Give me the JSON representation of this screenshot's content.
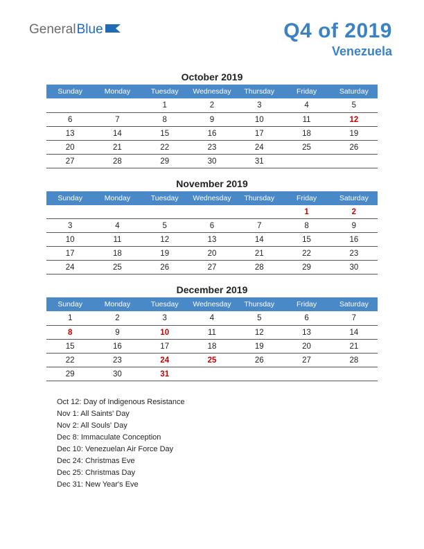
{
  "logo": {
    "part1": "General",
    "part2": "Blue"
  },
  "header": {
    "title": "Q4 of 2019",
    "subtitle": "Venezuela",
    "title_color": "#3b82c4",
    "subtitle_color": "#3b82c4"
  },
  "weekdays": [
    "Sunday",
    "Monday",
    "Tuesday",
    "Wednesday",
    "Thursday",
    "Friday",
    "Saturday"
  ],
  "header_row_bg": "#4a89c8",
  "months": [
    {
      "title": "October 2019",
      "weeks": [
        [
          {
            "d": ""
          },
          {
            "d": ""
          },
          {
            "d": "1"
          },
          {
            "d": "2"
          },
          {
            "d": "3"
          },
          {
            "d": "4"
          },
          {
            "d": "5"
          }
        ],
        [
          {
            "d": "6"
          },
          {
            "d": "7"
          },
          {
            "d": "8"
          },
          {
            "d": "9"
          },
          {
            "d": "10"
          },
          {
            "d": "11"
          },
          {
            "d": "12",
            "h": true
          }
        ],
        [
          {
            "d": "13"
          },
          {
            "d": "14"
          },
          {
            "d": "15"
          },
          {
            "d": "16"
          },
          {
            "d": "17"
          },
          {
            "d": "18"
          },
          {
            "d": "19"
          }
        ],
        [
          {
            "d": "20"
          },
          {
            "d": "21"
          },
          {
            "d": "22"
          },
          {
            "d": "23"
          },
          {
            "d": "24"
          },
          {
            "d": "25"
          },
          {
            "d": "26"
          }
        ],
        [
          {
            "d": "27"
          },
          {
            "d": "28"
          },
          {
            "d": "29"
          },
          {
            "d": "30"
          },
          {
            "d": "31"
          },
          {
            "d": ""
          },
          {
            "d": ""
          }
        ]
      ]
    },
    {
      "title": "November 2019",
      "weeks": [
        [
          {
            "d": ""
          },
          {
            "d": ""
          },
          {
            "d": ""
          },
          {
            "d": ""
          },
          {
            "d": ""
          },
          {
            "d": "1",
            "h": true
          },
          {
            "d": "2",
            "h": true
          }
        ],
        [
          {
            "d": "3"
          },
          {
            "d": "4"
          },
          {
            "d": "5"
          },
          {
            "d": "6"
          },
          {
            "d": "7"
          },
          {
            "d": "8"
          },
          {
            "d": "9"
          }
        ],
        [
          {
            "d": "10"
          },
          {
            "d": "11"
          },
          {
            "d": "12"
          },
          {
            "d": "13"
          },
          {
            "d": "14"
          },
          {
            "d": "15"
          },
          {
            "d": "16"
          }
        ],
        [
          {
            "d": "17"
          },
          {
            "d": "18"
          },
          {
            "d": "19"
          },
          {
            "d": "20"
          },
          {
            "d": "21"
          },
          {
            "d": "22"
          },
          {
            "d": "23"
          }
        ],
        [
          {
            "d": "24"
          },
          {
            "d": "25"
          },
          {
            "d": "26"
          },
          {
            "d": "27"
          },
          {
            "d": "28"
          },
          {
            "d": "29"
          },
          {
            "d": "30"
          }
        ]
      ]
    },
    {
      "title": "December 2019",
      "weeks": [
        [
          {
            "d": "1"
          },
          {
            "d": "2"
          },
          {
            "d": "3"
          },
          {
            "d": "4"
          },
          {
            "d": "5"
          },
          {
            "d": "6"
          },
          {
            "d": "7"
          }
        ],
        [
          {
            "d": "8",
            "h": true
          },
          {
            "d": "9"
          },
          {
            "d": "10",
            "h": true
          },
          {
            "d": "11"
          },
          {
            "d": "12"
          },
          {
            "d": "13"
          },
          {
            "d": "14"
          }
        ],
        [
          {
            "d": "15"
          },
          {
            "d": "16"
          },
          {
            "d": "17"
          },
          {
            "d": "18"
          },
          {
            "d": "19"
          },
          {
            "d": "20"
          },
          {
            "d": "21"
          }
        ],
        [
          {
            "d": "22"
          },
          {
            "d": "23"
          },
          {
            "d": "24",
            "h": true
          },
          {
            "d": "25",
            "h": true
          },
          {
            "d": "26"
          },
          {
            "d": "27"
          },
          {
            "d": "28"
          }
        ],
        [
          {
            "d": "29"
          },
          {
            "d": "30"
          },
          {
            "d": "31",
            "h": true
          },
          {
            "d": ""
          },
          {
            "d": ""
          },
          {
            "d": ""
          },
          {
            "d": ""
          }
        ]
      ]
    }
  ],
  "holidays": [
    "Oct 12: Day of Indigenous Resistance",
    "Nov 1: All Saints' Day",
    "Nov 2: All Souls' Day",
    "Dec 8: Immaculate Conception",
    "Dec 10: Venezuelan Air Force Day",
    "Dec 24: Christmas Eve",
    "Dec 25: Christmas Day",
    "Dec 31: New Year's Eve"
  ]
}
